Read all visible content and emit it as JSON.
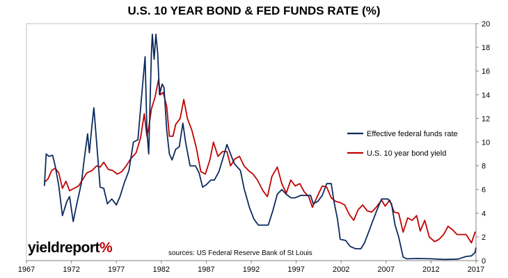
{
  "chart_data": {
    "type": "line",
    "title": "U.S. 10 YEAR BOND & FED FUNDS RATE (%)",
    "xlim": [
      1967,
      2017
    ],
    "ylim": [
      0,
      20
    ],
    "x_ticks": [
      "1967",
      "1972",
      "1977",
      "1982",
      "1987",
      "1992",
      "1997",
      "2002",
      "2007",
      "2012",
      "2017"
    ],
    "y_ticks": [
      "0",
      "2",
      "4",
      "6",
      "8",
      "10",
      "12",
      "14",
      "16",
      "18",
      "20"
    ],
    "y_axis_side": "right",
    "grid": false,
    "legend_position": "right",
    "series": [
      {
        "name": "Effective federal funds rate",
        "color": "#0b2a5e",
        "points": [
          [
            1969.0,
            6.3
          ],
          [
            1969.2,
            9.0
          ],
          [
            1969.5,
            8.8
          ],
          [
            1969.9,
            8.9
          ],
          [
            1970.2,
            8.0
          ],
          [
            1970.6,
            6.3
          ],
          [
            1971.0,
            3.8
          ],
          [
            1971.5,
            5.0
          ],
          [
            1971.8,
            5.4
          ],
          [
            1972.2,
            3.3
          ],
          [
            1972.6,
            4.8
          ],
          [
            1973.1,
            6.5
          ],
          [
            1973.5,
            9.0
          ],
          [
            1973.8,
            10.7
          ],
          [
            1974.0,
            9.1
          ],
          [
            1974.3,
            11.5
          ],
          [
            1974.5,
            12.9
          ],
          [
            1974.8,
            10.0
          ],
          [
            1975.2,
            6.2
          ],
          [
            1975.6,
            6.1
          ],
          [
            1976.0,
            4.8
          ],
          [
            1976.5,
            5.2
          ],
          [
            1977.0,
            4.7
          ],
          [
            1977.4,
            5.4
          ],
          [
            1977.9,
            6.6
          ],
          [
            1978.4,
            7.6
          ],
          [
            1978.9,
            10.0
          ],
          [
            1979.4,
            10.2
          ],
          [
            1979.8,
            13.8
          ],
          [
            1980.2,
            17.2
          ],
          [
            1980.4,
            11.0
          ],
          [
            1980.6,
            9.0
          ],
          [
            1980.9,
            17.6
          ],
          [
            1981.0,
            19.1
          ],
          [
            1981.2,
            17.0
          ],
          [
            1981.4,
            19.1
          ],
          [
            1981.6,
            17.5
          ],
          [
            1981.8,
            14.0
          ],
          [
            1982.1,
            14.9
          ],
          [
            1982.3,
            14.6
          ],
          [
            1982.6,
            11.0
          ],
          [
            1982.9,
            9.0
          ],
          [
            1983.2,
            8.5
          ],
          [
            1983.6,
            9.4
          ],
          [
            1984.0,
            9.6
          ],
          [
            1984.4,
            11.6
          ],
          [
            1984.7,
            10.0
          ],
          [
            1985.2,
            8.0
          ],
          [
            1985.8,
            8.0
          ],
          [
            1986.2,
            7.4
          ],
          [
            1986.6,
            6.2
          ],
          [
            1987.0,
            6.4
          ],
          [
            1987.5,
            6.8
          ],
          [
            1987.9,
            6.8
          ],
          [
            1988.4,
            7.5
          ],
          [
            1988.8,
            8.5
          ],
          [
            1989.3,
            9.8
          ],
          [
            1989.7,
            9.0
          ],
          [
            1990.1,
            8.2
          ],
          [
            1990.8,
            7.6
          ],
          [
            1991.2,
            6.1
          ],
          [
            1991.8,
            4.5
          ],
          [
            1992.3,
            3.5
          ],
          [
            1992.8,
            3.0
          ],
          [
            1993.4,
            3.0
          ],
          [
            1993.9,
            3.0
          ],
          [
            1994.4,
            4.2
          ],
          [
            1994.9,
            5.6
          ],
          [
            1995.4,
            6.0
          ],
          [
            1995.9,
            5.6
          ],
          [
            1996.4,
            5.3
          ],
          [
            1996.9,
            5.3
          ],
          [
            1997.5,
            5.5
          ],
          [
            1998.0,
            5.5
          ],
          [
            1998.6,
            5.5
          ],
          [
            1998.9,
            4.8
          ],
          [
            1999.4,
            5.0
          ],
          [
            1999.9,
            5.5
          ],
          [
            2000.4,
            6.5
          ],
          [
            2000.9,
            6.5
          ],
          [
            2001.2,
            5.0
          ],
          [
            2001.6,
            3.5
          ],
          [
            2001.9,
            1.8
          ],
          [
            2002.5,
            1.7
          ],
          [
            2003.0,
            1.2
          ],
          [
            2003.6,
            1.0
          ],
          [
            2004.2,
            1.0
          ],
          [
            2004.6,
            1.5
          ],
          [
            2005.0,
            2.3
          ],
          [
            2005.5,
            3.3
          ],
          [
            2006.0,
            4.3
          ],
          [
            2006.5,
            5.2
          ],
          [
            2007.2,
            5.2
          ],
          [
            2007.6,
            4.8
          ],
          [
            2008.0,
            3.0
          ],
          [
            2008.4,
            2.0
          ],
          [
            2008.9,
            0.3
          ],
          [
            2009.3,
            0.15
          ],
          [
            2010.5,
            0.18
          ],
          [
            2012.0,
            0.15
          ],
          [
            2013.5,
            0.1
          ],
          [
            2015.0,
            0.13
          ],
          [
            2015.9,
            0.35
          ],
          [
            2016.5,
            0.4
          ],
          [
            2016.9,
            0.7
          ],
          [
            2017.0,
            1.1
          ]
        ]
      },
      {
        "name": "U.S. 10 year bond yield",
        "color": "#c00000",
        "points": [
          [
            1969.0,
            6.6
          ],
          [
            1969.4,
            6.9
          ],
          [
            1969.8,
            7.6
          ],
          [
            1970.2,
            7.8
          ],
          [
            1970.6,
            7.4
          ],
          [
            1971.0,
            6.1
          ],
          [
            1971.4,
            6.7
          ],
          [
            1971.8,
            5.9
          ],
          [
            1972.3,
            6.1
          ],
          [
            1972.8,
            6.3
          ],
          [
            1973.3,
            6.9
          ],
          [
            1973.7,
            7.4
          ],
          [
            1974.3,
            7.6
          ],
          [
            1974.8,
            8.0
          ],
          [
            1975.2,
            7.9
          ],
          [
            1975.6,
            8.3
          ],
          [
            1976.1,
            7.7
          ],
          [
            1976.6,
            7.6
          ],
          [
            1977.1,
            7.3
          ],
          [
            1977.6,
            7.5
          ],
          [
            1978.1,
            8.0
          ],
          [
            1978.6,
            8.6
          ],
          [
            1979.2,
            9.1
          ],
          [
            1979.7,
            10.4
          ],
          [
            1980.1,
            12.4
          ],
          [
            1980.4,
            10.5
          ],
          [
            1980.6,
            11.2
          ],
          [
            1980.9,
            12.8
          ],
          [
            1981.3,
            13.8
          ],
          [
            1981.7,
            15.3
          ],
          [
            1981.9,
            14.0
          ],
          [
            1982.2,
            14.2
          ],
          [
            1982.6,
            13.0
          ],
          [
            1982.9,
            10.5
          ],
          [
            1983.3,
            10.5
          ],
          [
            1983.6,
            11.5
          ],
          [
            1984.1,
            12.0
          ],
          [
            1984.5,
            13.6
          ],
          [
            1984.9,
            12.0
          ],
          [
            1985.4,
            11.0
          ],
          [
            1985.9,
            9.5
          ],
          [
            1986.4,
            7.5
          ],
          [
            1986.9,
            7.3
          ],
          [
            1987.4,
            8.5
          ],
          [
            1987.8,
            10.0
          ],
          [
            1988.3,
            8.8
          ],
          [
            1988.8,
            9.2
          ],
          [
            1989.3,
            9.2
          ],
          [
            1989.7,
            8.0
          ],
          [
            1990.2,
            8.6
          ],
          [
            1990.7,
            8.8
          ],
          [
            1991.2,
            8.0
          ],
          [
            1991.7,
            7.6
          ],
          [
            1992.2,
            7.3
          ],
          [
            1992.7,
            6.8
          ],
          [
            1993.3,
            5.9
          ],
          [
            1993.8,
            5.4
          ],
          [
            1994.3,
            7.1
          ],
          [
            1994.9,
            7.9
          ],
          [
            1995.4,
            6.5
          ],
          [
            1995.9,
            5.7
          ],
          [
            1996.4,
            6.8
          ],
          [
            1996.9,
            6.3
          ],
          [
            1997.4,
            6.5
          ],
          [
            1997.9,
            5.8
          ],
          [
            1998.4,
            5.4
          ],
          [
            1998.8,
            4.5
          ],
          [
            1999.4,
            5.5
          ],
          [
            1999.9,
            6.3
          ],
          [
            2000.4,
            6.2
          ],
          [
            2000.9,
            5.3
          ],
          [
            2001.4,
            5.0
          ],
          [
            2001.9,
            4.9
          ],
          [
            2002.4,
            4.7
          ],
          [
            2002.9,
            3.9
          ],
          [
            2003.4,
            3.4
          ],
          [
            2003.9,
            4.3
          ],
          [
            2004.4,
            4.7
          ],
          [
            2004.9,
            4.2
          ],
          [
            2005.4,
            4.1
          ],
          [
            2005.9,
            4.5
          ],
          [
            2006.5,
            5.1
          ],
          [
            2006.9,
            4.6
          ],
          [
            2007.4,
            5.1
          ],
          [
            2007.9,
            4.1
          ],
          [
            2008.4,
            4.0
          ],
          [
            2008.9,
            2.4
          ],
          [
            2009.4,
            3.6
          ],
          [
            2009.9,
            3.4
          ],
          [
            2010.4,
            3.8
          ],
          [
            2010.8,
            2.5
          ],
          [
            2011.3,
            3.4
          ],
          [
            2011.8,
            2.0
          ],
          [
            2012.4,
            1.6
          ],
          [
            2012.9,
            1.8
          ],
          [
            2013.4,
            2.2
          ],
          [
            2013.9,
            2.9
          ],
          [
            2014.4,
            2.6
          ],
          [
            2014.9,
            2.2
          ],
          [
            2015.4,
            2.2
          ],
          [
            2015.9,
            2.2
          ],
          [
            2016.5,
            1.5
          ],
          [
            2016.9,
            2.4
          ],
          [
            2017.0,
            2.4
          ]
        ]
      }
    ]
  },
  "branding": {
    "logo_text_part1": "yield",
    "logo_text_part2": "report",
    "logo_text_part3": "%",
    "source_note": "sources: US Federal Reserve Bank of St Louis"
  }
}
